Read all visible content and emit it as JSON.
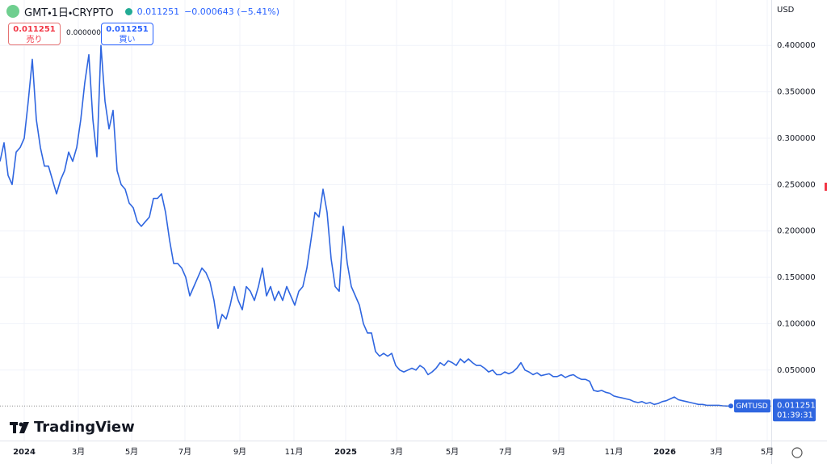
{
  "header": {
    "symbol": "GMT・1日・CRYPTO",
    "price": "0.011251",
    "change": "−0.000643 (−5.41%)",
    "sell_price": "0.011251",
    "sell_label": "売り",
    "spread": "0.000000",
    "buy_price": "0.011251",
    "buy_label": "買い",
    "currency": "USD",
    "brand": "TradingView"
  },
  "chart_data": {
    "type": "line",
    "series": [
      {
        "name": "GMTUSD",
        "color": "#2f66e0",
        "values": [
          0.275,
          0.295,
          0.26,
          0.25,
          0.285,
          0.29,
          0.3,
          0.34,
          0.385,
          0.32,
          0.29,
          0.27,
          0.27,
          0.255,
          0.24,
          0.255,
          0.265,
          0.285,
          0.275,
          0.29,
          0.32,
          0.36,
          0.39,
          0.32,
          0.28,
          0.4,
          0.34,
          0.31,
          0.33,
          0.265,
          0.25,
          0.245,
          0.23,
          0.225,
          0.21,
          0.205,
          0.21,
          0.215,
          0.235,
          0.235,
          0.24,
          0.22,
          0.19,
          0.165,
          0.165,
          0.16,
          0.15,
          0.13,
          0.14,
          0.15,
          0.16,
          0.155,
          0.145,
          0.125,
          0.095,
          0.11,
          0.105,
          0.12,
          0.14,
          0.125,
          0.115,
          0.14,
          0.135,
          0.125,
          0.14,
          0.16,
          0.13,
          0.14,
          0.125,
          0.135,
          0.125,
          0.14,
          0.13,
          0.12,
          0.135,
          0.14,
          0.16,
          0.19,
          0.22,
          0.215,
          0.245,
          0.22,
          0.17,
          0.14,
          0.135,
          0.205,
          0.165,
          0.14,
          0.13,
          0.12,
          0.1,
          0.09,
          0.09,
          0.07,
          0.065,
          0.068,
          0.065,
          0.068,
          0.055,
          0.05,
          0.048,
          0.05,
          0.052,
          0.05,
          0.055,
          0.052,
          0.045,
          0.048,
          0.052,
          0.058,
          0.055,
          0.06,
          0.058,
          0.055,
          0.062,
          0.058,
          0.062,
          0.058,
          0.055,
          0.055,
          0.052,
          0.048,
          0.05,
          0.045,
          0.045,
          0.048,
          0.046,
          0.048,
          0.052,
          0.058,
          0.05,
          0.048,
          0.045,
          0.047,
          0.044,
          0.045,
          0.046,
          0.043,
          0.043,
          0.045,
          0.042,
          0.044,
          0.045,
          0.042,
          0.04,
          0.04,
          0.038,
          0.028,
          0.027,
          0.028,
          0.026,
          0.025,
          0.022,
          0.021,
          0.02,
          0.019,
          0.018,
          0.016,
          0.015,
          0.016,
          0.014,
          0.015,
          0.013,
          0.014,
          0.016,
          0.017,
          0.019,
          0.021,
          0.018,
          0.017,
          0.016,
          0.015,
          0.014,
          0.013,
          0.013,
          0.012,
          0.012,
          0.012,
          0.012,
          0.0115,
          0.011251,
          0.011251
        ]
      }
    ],
    "last_price": 0.011251,
    "countdown": "01:39:31",
    "ylim": [
      -0.026,
      0.449
    ],
    "yticks": [
      {
        "value": 0.05,
        "label": "0.050000"
      },
      {
        "value": 0.1,
        "label": "0.100000"
      },
      {
        "value": 0.15,
        "label": "0.150000"
      },
      {
        "value": 0.2,
        "label": "0.200000"
      },
      {
        "value": 0.25,
        "label": "0.250000"
      },
      {
        "value": 0.3,
        "label": "0.300000"
      },
      {
        "value": 0.35,
        "label": "0.350000"
      },
      {
        "value": 0.4,
        "label": "0.400000"
      }
    ],
    "xlim": [
      0,
      191
    ],
    "xticks": [
      {
        "value": 6,
        "label": "2024"
      },
      {
        "value": 19.4,
        "label": "3月"
      },
      {
        "value": 32.6,
        "label": "5月"
      },
      {
        "value": 45.8,
        "label": "7月"
      },
      {
        "value": 59.4,
        "label": "9月"
      },
      {
        "value": 72.8,
        "label": "11月"
      },
      {
        "value": 85.6,
        "label": "2025"
      },
      {
        "value": 98.2,
        "label": "3月"
      },
      {
        "value": 112,
        "label": "5月"
      },
      {
        "value": 125.2,
        "label": "7月"
      },
      {
        "value": 138.4,
        "label": "9月"
      },
      {
        "value": 152,
        "label": "11月"
      },
      {
        "value": 164.6,
        "label": "2026"
      },
      {
        "value": 177.4,
        "label": "3月"
      },
      {
        "value": 190,
        "label": "5月"
      }
    ],
    "grid": true
  }
}
